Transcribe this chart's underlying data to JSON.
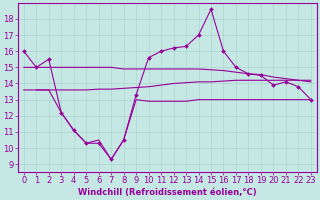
{
  "title": "",
  "xlabel": "Windchill (Refroidissement éolien,°C)",
  "ylabel": "",
  "background_color": "#c5e8e5",
  "grid_color": "#aed4d0",
  "line_color": "#990099",
  "xlim": [
    -0.5,
    23.5
  ],
  "ylim": [
    8.5,
    19.0
  ],
  "yticks": [
    9,
    10,
    11,
    12,
    13,
    14,
    15,
    16,
    17,
    18
  ],
  "xticks": [
    0,
    1,
    2,
    3,
    4,
    5,
    6,
    7,
    8,
    9,
    10,
    11,
    12,
    13,
    14,
    15,
    16,
    17,
    18,
    19,
    20,
    21,
    22,
    23
  ],
  "line1_x": [
    0,
    1,
    2,
    3,
    4,
    5,
    6,
    7,
    8,
    9,
    10,
    11,
    12,
    13,
    14,
    15,
    16,
    17,
    18,
    19,
    20,
    21,
    22,
    23
  ],
  "line1_y": [
    16.0,
    15.0,
    15.5,
    12.2,
    11.1,
    10.3,
    10.3,
    9.3,
    10.5,
    13.3,
    15.6,
    16.0,
    16.2,
    16.3,
    17.0,
    18.6,
    16.0,
    15.0,
    14.6,
    14.5,
    13.9,
    14.1,
    13.8,
    13.0
  ],
  "line2_x": [
    0,
    1,
    2,
    3,
    4,
    5,
    6,
    7,
    8,
    9,
    10,
    11,
    12,
    13,
    14,
    15,
    16,
    17,
    18,
    19,
    20,
    21,
    22,
    23
  ],
  "line2_y": [
    15.0,
    15.0,
    15.0,
    15.0,
    15.0,
    15.0,
    15.0,
    15.0,
    14.9,
    14.9,
    14.9,
    14.9,
    14.9,
    14.9,
    14.9,
    14.85,
    14.8,
    14.7,
    14.6,
    14.55,
    14.4,
    14.3,
    14.2,
    14.1
  ],
  "line3_x": [
    0,
    1,
    2,
    3,
    4,
    5,
    6,
    7,
    8,
    9,
    10,
    11,
    12,
    13,
    14,
    15,
    16,
    17,
    18,
    19,
    20,
    21,
    22,
    23
  ],
  "line3_y": [
    13.6,
    13.6,
    13.6,
    13.6,
    13.6,
    13.6,
    13.65,
    13.65,
    13.7,
    13.75,
    13.8,
    13.9,
    14.0,
    14.05,
    14.1,
    14.1,
    14.15,
    14.2,
    14.2,
    14.2,
    14.2,
    14.2,
    14.2,
    14.2
  ],
  "line4_x": [
    1,
    2,
    3,
    4,
    5,
    6,
    7,
    8,
    9,
    10,
    11,
    12,
    13,
    14,
    15,
    16,
    17,
    18,
    19,
    20,
    21,
    22,
    23
  ],
  "line4_y": [
    13.6,
    13.6,
    12.2,
    11.1,
    10.3,
    10.5,
    9.3,
    10.5,
    13.0,
    12.9,
    12.9,
    12.9,
    12.9,
    13.0,
    13.0,
    13.0,
    13.0,
    13.0,
    13.0,
    13.0,
    13.0,
    13.0,
    13.0
  ],
  "font_size": 6,
  "marker_style": "D",
  "marker_size": 2.0,
  "linewidth": 0.8
}
